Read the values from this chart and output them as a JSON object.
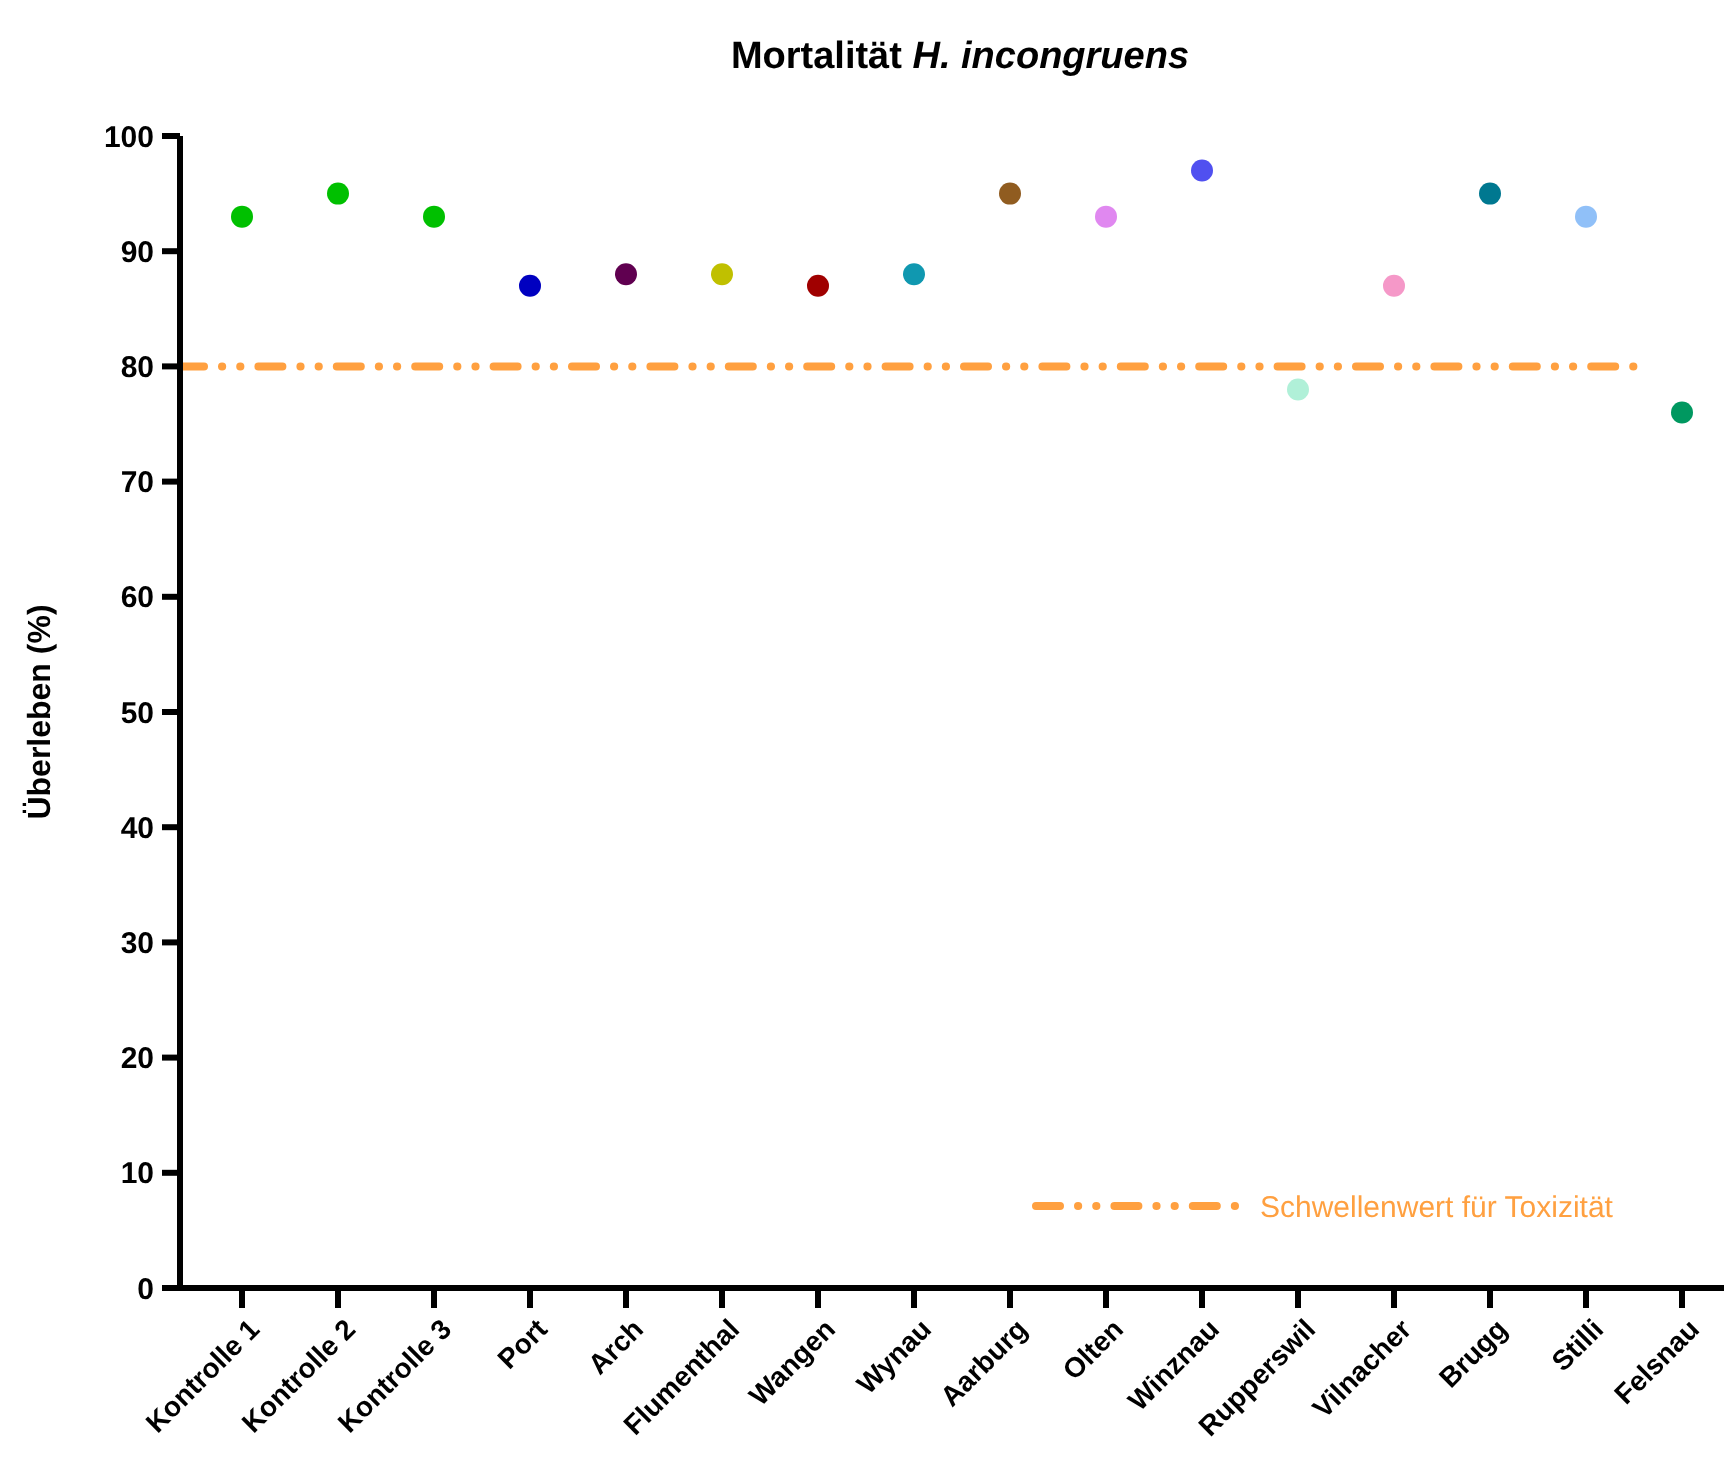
{
  "chart_data": {
    "type": "scatter",
    "title": "Mortalität H. incongruens",
    "ylabel": "Überleben (%)",
    "categories": [
      "Kontrolle 1",
      "Kontrolle 2",
      "Kontrolle 3",
      "Port",
      "Arch",
      "Flumenthal",
      "Wangen",
      "Wynau",
      "Aarburg",
      "Olten",
      "Winznau",
      "Rupperswil",
      "Vilnacher",
      "Brugg",
      "Stilli",
      "Felsnau"
    ],
    "values": [
      93,
      95,
      93,
      87,
      88,
      88,
      87,
      88,
      95,
      93,
      97,
      78,
      87,
      95,
      93,
      76
    ],
    "colors": [
      "#00c000",
      "#00c000",
      "#00c000",
      "#0000c0",
      "#600050",
      "#c0c000",
      "#a00000",
      "#1098b0",
      "#905c20",
      "#e088f0",
      "#5050f0",
      "#b0f0d8",
      "#f598c8",
      "#007890",
      "#90c0f8",
      "#009860"
    ],
    "marker": "circle",
    "ylim": [
      0,
      100
    ],
    "yticks": [
      0,
      10,
      20,
      30,
      40,
      50,
      60,
      70,
      80,
      90,
      100
    ],
    "ref_lines": [
      {
        "axis": "y",
        "value": 80,
        "label": "Schwellenwert für Toxizität",
        "color": "#ffa040"
      }
    ],
    "legend": "bottom right",
    "grid": false
  }
}
